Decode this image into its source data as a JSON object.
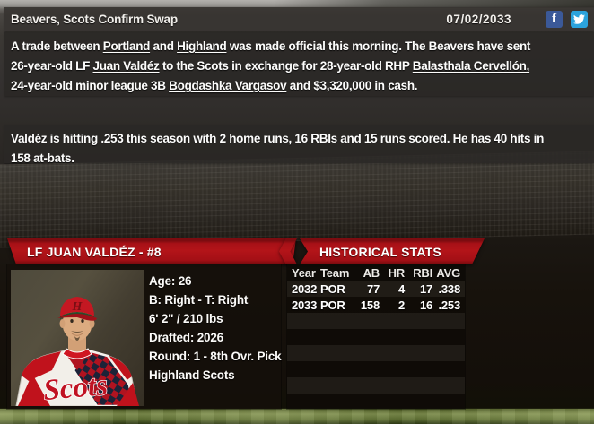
{
  "header": {
    "title": "Beavers, Scots Confirm Swap",
    "date": "07/02/2033",
    "facebook_label": "f"
  },
  "article": {
    "paragraph1": [
      [
        {
          "t": "A trade between "
        },
        {
          "t": "Portland",
          "link": true
        },
        {
          "t": " and "
        },
        {
          "t": "Highland",
          "link": true
        },
        {
          "t": " was made official this morning. The Beavers have sent"
        }
      ],
      [
        {
          "t": "26-year-old LF "
        },
        {
          "t": "Juan Valdéz",
          "link": true
        },
        {
          "t": " to the Scots in exchange for 28-year-old RHP "
        },
        {
          "t": "Balasthala Cervellón,",
          "link": true
        }
      ],
      [
        {
          "t": "24-year-old minor league 3B "
        },
        {
          "t": "Bogdashka Vargasov",
          "link": true
        },
        {
          "t": " and $3,320,000 in cash."
        }
      ]
    ],
    "paragraph2": [
      [
        {
          "t": "Valdéz is hitting .253 this season with 2 home runs, 16 RBIs and 15 runs scored. He has 40 hits in"
        }
      ],
      [
        {
          "t": "158 at-bats."
        }
      ]
    ]
  },
  "player_card": {
    "title": "LF JUAN VALDÉZ - #8",
    "info_lines": [
      "Age: 26",
      "B: Right - T: Right",
      "6' 2\" / 210 lbs",
      "Drafted: 2026",
      "Round: 1 - 8th Ovr. Pick",
      "Highland Scots"
    ],
    "jersey_script": "Scots",
    "cap_letter": "H"
  },
  "historical_stats": {
    "title": "HISTORICAL STATS",
    "columns": [
      "Year",
      "Team",
      "AB",
      "HR",
      "RBI",
      "AVG"
    ],
    "rows": [
      [
        "2032",
        "POR",
        "77",
        "4",
        "17",
        ".338"
      ],
      [
        "2033",
        "POR",
        "158",
        "2",
        "16",
        ".253"
      ]
    ],
    "empty_row_count": 6
  },
  "colors": {
    "banner_red": "#b31419",
    "facebook_blue": "#3b5998",
    "twitter_blue": "#2ba3dc",
    "header_bar": "#383532"
  }
}
